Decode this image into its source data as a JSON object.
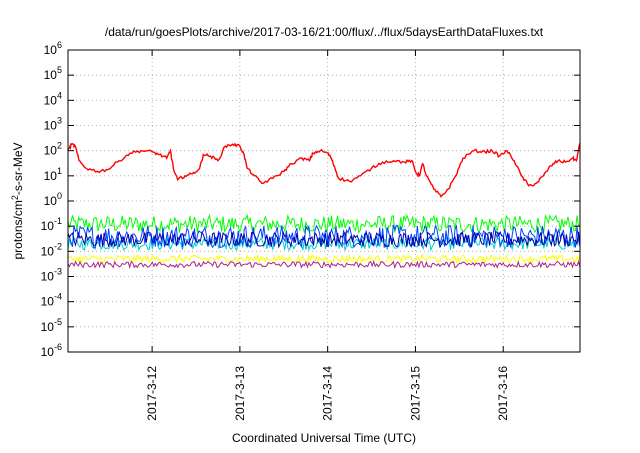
{
  "chart_data": {
    "type": "line",
    "title": "/data/run/goesPlots/archive/2017-03-16/21:00/flux/../flux/5daysEarthDataFluxes.txt",
    "xlabel": "Coordinated Universal Time (UTC)",
    "ylabel": "protons/cm²-s-sr-MeV",
    "yscale": "log",
    "ylim": [
      1e-06,
      1000000.0
    ],
    "xlim": [
      "2017-03-11 01:00",
      "2017-03-16 21:00"
    ],
    "yticks": [
      {
        "value": 1e-06,
        "base": "10",
        "exp": "-6"
      },
      {
        "value": 1e-05,
        "base": "10",
        "exp": "-5"
      },
      {
        "value": 0.0001,
        "base": "10",
        "exp": "-4"
      },
      {
        "value": 0.001,
        "base": "10",
        "exp": "-3"
      },
      {
        "value": 0.01,
        "base": "10",
        "exp": "-2"
      },
      {
        "value": 0.1,
        "base": "10",
        "exp": "-1"
      },
      {
        "value": 1.0,
        "base": "10",
        "exp": "0"
      },
      {
        "value": 10.0,
        "base": "10",
        "exp": "1"
      },
      {
        "value": 100.0,
        "base": "10",
        "exp": "2"
      },
      {
        "value": 1000.0,
        "base": "10",
        "exp": "3"
      },
      {
        "value": 10000.0,
        "base": "10",
        "exp": "4"
      },
      {
        "value": 100000.0,
        "base": "10",
        "exp": "5"
      },
      {
        "value": 1000000.0,
        "base": "10",
        "exp": "6"
      }
    ],
    "xticks": [
      {
        "at": "2017-03-12 00:00",
        "label": "2017-3-12"
      },
      {
        "at": "2017-03-13 00:00",
        "label": "2017-3-13"
      },
      {
        "at": "2017-03-14 00:00",
        "label": "2017-3-14"
      },
      {
        "at": "2017-03-15 00:00",
        "label": "2017-3-15"
      },
      {
        "at": "2017-03-16 00:00",
        "label": "2017-3-16"
      }
    ],
    "grid": true,
    "series": [
      {
        "color": "#ff0000",
        "points": [
          [
            "2017-03-11 01:00",
            100
          ],
          [
            "2017-03-11 02:00",
            180
          ],
          [
            "2017-03-11 03:00",
            150
          ],
          [
            "2017-03-11 04:00",
            40
          ],
          [
            "2017-03-11 06:00",
            20
          ],
          [
            "2017-03-11 09:00",
            15
          ],
          [
            "2017-03-11 12:00",
            18
          ],
          [
            "2017-03-11 15:00",
            40
          ],
          [
            "2017-03-11 18:00",
            80
          ],
          [
            "2017-03-11 21:00",
            100
          ],
          [
            "2017-03-12 00:00",
            90
          ],
          [
            "2017-03-12 02:00",
            70
          ],
          [
            "2017-03-12 04:00",
            50
          ],
          [
            "2017-03-12 05:00",
            100
          ],
          [
            "2017-03-12 06:00",
            15
          ],
          [
            "2017-03-12 07:00",
            7
          ],
          [
            "2017-03-12 09:00",
            10
          ],
          [
            "2017-03-12 11:00",
            12
          ],
          [
            "2017-03-12 13:00",
            20
          ],
          [
            "2017-03-12 14:00",
            70
          ],
          [
            "2017-03-12 16:00",
            60
          ],
          [
            "2017-03-12 18:00",
            40
          ],
          [
            "2017-03-12 20:00",
            150
          ],
          [
            "2017-03-12 22:00",
            180
          ],
          [
            "2017-03-13 00:00",
            150
          ],
          [
            "2017-03-13 01:00",
            80
          ],
          [
            "2017-03-13 02:00",
            20
          ],
          [
            "2017-03-13 04:00",
            10
          ],
          [
            "2017-03-13 06:00",
            5
          ],
          [
            "2017-03-13 09:00",
            8
          ],
          [
            "2017-03-13 12:00",
            15
          ],
          [
            "2017-03-13 14:00",
            30
          ],
          [
            "2017-03-13 17:00",
            50
          ],
          [
            "2017-03-13 19:00",
            40
          ],
          [
            "2017-03-13 20:00",
            80
          ],
          [
            "2017-03-13 22:00",
            100
          ],
          [
            "2017-03-14 00:00",
            80
          ],
          [
            "2017-03-14 01:00",
            50
          ],
          [
            "2017-03-14 02:00",
            20
          ],
          [
            "2017-03-14 03:00",
            8
          ],
          [
            "2017-03-14 06:00",
            6
          ],
          [
            "2017-03-14 09:00",
            10
          ],
          [
            "2017-03-14 12:00",
            20
          ],
          [
            "2017-03-14 15:00",
            35
          ],
          [
            "2017-03-14 18:00",
            40
          ],
          [
            "2017-03-14 21:00",
            35
          ],
          [
            "2017-03-14 23:00",
            40
          ],
          [
            "2017-03-15 00:00",
            15
          ],
          [
            "2017-03-15 01:00",
            10
          ],
          [
            "2017-03-15 02:00",
            30
          ],
          [
            "2017-03-15 03:00",
            10
          ],
          [
            "2017-03-15 05:00",
            3
          ],
          [
            "2017-03-15 07:00",
            1.5
          ],
          [
            "2017-03-15 09:00",
            3
          ],
          [
            "2017-03-15 11:00",
            10
          ],
          [
            "2017-03-15 13:00",
            50
          ],
          [
            "2017-03-15 16:00",
            100
          ],
          [
            "2017-03-15 19:00",
            90
          ],
          [
            "2017-03-15 21:00",
            100
          ],
          [
            "2017-03-15 23:00",
            60
          ],
          [
            "2017-03-16 01:00",
            100
          ],
          [
            "2017-03-16 03:00",
            40
          ],
          [
            "2017-03-16 05:00",
            10
          ],
          [
            "2017-03-16 07:00",
            4
          ],
          [
            "2017-03-16 09:00",
            5
          ],
          [
            "2017-03-16 11:00",
            10
          ],
          [
            "2017-03-16 13:00",
            25
          ],
          [
            "2017-03-16 15:00",
            40
          ],
          [
            "2017-03-16 17:00",
            35
          ],
          [
            "2017-03-16 19:00",
            50
          ],
          [
            "2017-03-16 20:00",
            40
          ],
          [
            "2017-03-16 21:00",
            200
          ]
        ]
      },
      {
        "color": "#00ff00",
        "level": 0.12,
        "points": []
      },
      {
        "color": "#00cccc",
        "level": 0.02,
        "points": []
      },
      {
        "color": "#0044ff",
        "level": 0.04,
        "points": []
      },
      {
        "color": "#0000aa",
        "level": 0.03,
        "points": []
      },
      {
        "color": "#ffff00",
        "level": 0.005,
        "points": []
      },
      {
        "color": "#aa2288",
        "level": 0.003,
        "points": []
      }
    ]
  }
}
